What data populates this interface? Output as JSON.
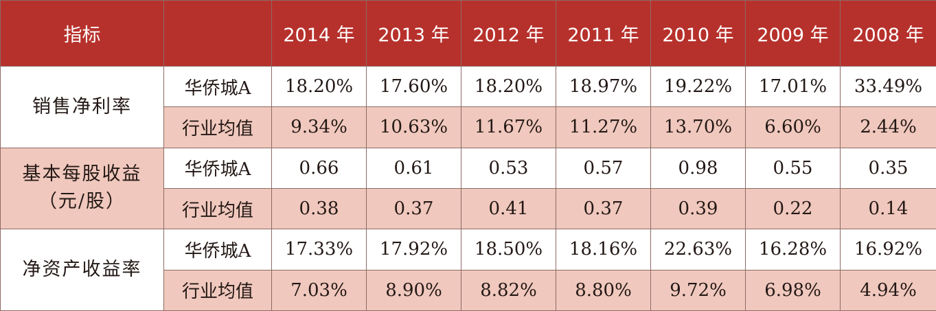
{
  "chart_data": {
    "type": "table",
    "columns": [
      "指标",
      "",
      "2014 年",
      "2013 年",
      "2012 年",
      "2011 年",
      "2010 年",
      "2009 年",
      "2008 年"
    ],
    "groups": [
      {
        "metric_lines": [
          "销售净利率"
        ],
        "shaded": false,
        "rows": [
          {
            "entity": "华侨城A",
            "values": [
              "18.20%",
              "17.60%",
              "18.20%",
              "18.97%",
              "19.22%",
              "17.01%",
              "33.49%"
            ]
          },
          {
            "entity": "行业均值",
            "values": [
              "9.34%",
              "10.63%",
              "11.67%",
              "11.27%",
              "13.70%",
              "6.60%",
              "2.44%"
            ]
          }
        ]
      },
      {
        "metric_lines": [
          "基本每股收益",
          "（元/股）"
        ],
        "shaded": true,
        "rows": [
          {
            "entity": "华侨城A",
            "values": [
              "0.66",
              "0.61",
              "0.53",
              "0.57",
              "0.98",
              "0.55",
              "0.35"
            ]
          },
          {
            "entity": "行业均值",
            "values": [
              "0.38",
              "0.37",
              "0.41",
              "0.37",
              "0.39",
              "0.22",
              "0.14"
            ]
          }
        ]
      },
      {
        "metric_lines": [
          "净资产收益率"
        ],
        "shaded": false,
        "rows": [
          {
            "entity": "华侨城A",
            "values": [
              "17.33%",
              "17.92%",
              "18.50%",
              "18.16%",
              "22.63%",
              "16.28%",
              "16.92%"
            ]
          },
          {
            "entity": "行业均值",
            "values": [
              "7.03%",
              "8.90%",
              "8.82%",
              "8.80%",
              "9.72%",
              "6.98%",
              "4.94%"
            ]
          }
        ]
      }
    ]
  },
  "colors": {
    "header_bg": "#b7312c",
    "header_text": "#ffffff",
    "shade": "#f0c8bd",
    "border": "#8c6a64",
    "text": "#231815"
  }
}
